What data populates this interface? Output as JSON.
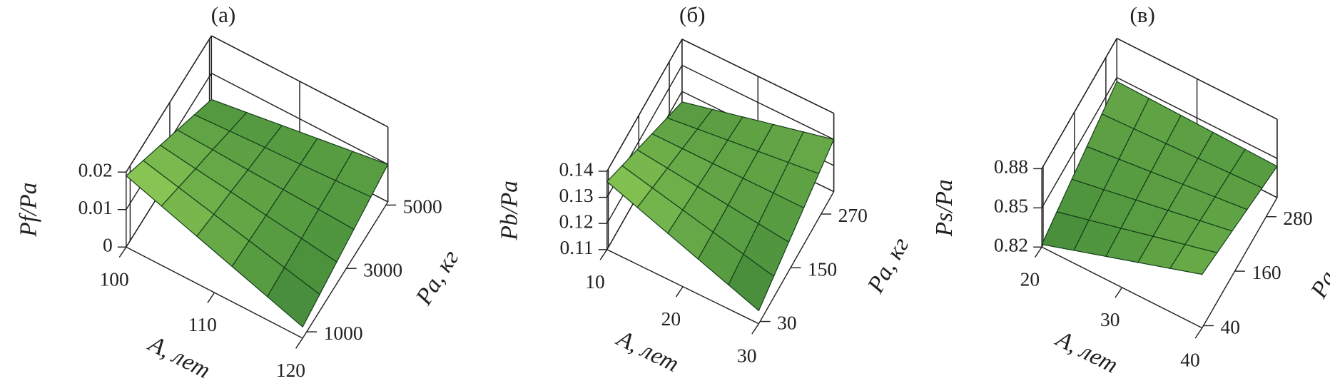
{
  "chart_data": [
    {
      "type": "surface",
      "title": "(а)",
      "xlabel": "A, лет",
      "ylabel": "Pa, кг",
      "zlabel": "Pf/Pa",
      "xlim": [
        100,
        120
      ],
      "ylim": [
        800,
        5100
      ],
      "zlim": [
        0,
        0.02
      ],
      "xticks": [
        100,
        110,
        120
      ],
      "yticks": [
        1000,
        3000,
        5000
      ],
      "zticks": [
        0,
        0.01,
        0.02
      ],
      "x": [
        100,
        104,
        108,
        112,
        116,
        120
      ],
      "y": [
        800,
        1660,
        2520,
        3380,
        4240,
        5100
      ],
      "z": [
        [
          0.019,
          0.0158,
          0.0126,
          0.0094,
          0.0062,
          0.003
        ],
        [
          0.0158,
          0.0135,
          0.0112,
          0.009,
          0.0067,
          0.0044
        ],
        [
          0.0126,
          0.0112,
          0.0099,
          0.0085,
          0.0072,
          0.0058
        ],
        [
          0.0094,
          0.009,
          0.0085,
          0.0081,
          0.0076,
          0.0072
        ],
        [
          0.0062,
          0.0067,
          0.0072,
          0.0077,
          0.0081,
          0.0086
        ],
        [
          0.003,
          0.0044,
          0.0058,
          0.0072,
          0.0086,
          0.01
        ]
      ],
      "colormap": [
        "#1d6a2c",
        "#9ad45a"
      ]
    },
    {
      "type": "surface",
      "title": "(б)",
      "xlabel": "A, лет",
      "ylabel": "Pa, кг",
      "zlabel": "Pb/Pa",
      "xlim": [
        10,
        30
      ],
      "ylim": [
        25,
        320
      ],
      "zlim": [
        0.11,
        0.14
      ],
      "xticks": [
        10,
        20,
        30
      ],
      "yticks": [
        30,
        150,
        270
      ],
      "zticks": [
        0.11,
        0.12,
        0.13,
        0.14
      ],
      "x": [
        10,
        14,
        18,
        22,
        26,
        30
      ],
      "y": [
        25,
        84,
        143,
        202,
        261,
        320
      ],
      "z": [
        [
          0.136,
          0.132,
          0.128,
          0.124,
          0.12,
          0.116
        ],
        [
          0.1318,
          0.1292,
          0.1266,
          0.124,
          0.1214,
          0.1188
        ],
        [
          0.1276,
          0.1264,
          0.1252,
          0.124,
          0.1228,
          0.1216
        ],
        [
          0.1234,
          0.1236,
          0.1238,
          0.124,
          0.1242,
          0.1244
        ],
        [
          0.1192,
          0.1208,
          0.1224,
          0.124,
          0.1256,
          0.1272
        ],
        [
          0.115,
          0.118,
          0.121,
          0.124,
          0.127,
          0.13
        ]
      ],
      "colormap": [
        "#1d6a2c",
        "#9ad45a"
      ]
    },
    {
      "type": "surface",
      "title": "(в)",
      "xlabel": "A, лет",
      "ylabel": "Pa, кг",
      "zlabel": "Ps/Pa",
      "xlim": [
        20,
        40
      ],
      "ylim": [
        35,
        322
      ],
      "zlim": [
        0.82,
        0.88
      ],
      "xticks": [
        20,
        30,
        40
      ],
      "yticks": [
        40,
        160,
        280
      ],
      "zticks": [
        0.82,
        0.85,
        0.88
      ],
      "x": [
        20,
        24,
        28,
        32,
        36,
        40
      ],
      "y": [
        35,
        92.4,
        149.8,
        207.2,
        264.6,
        322
      ],
      "z": [
        [
          0.822,
          0.827,
          0.832,
          0.837,
          0.842,
          0.847
        ],
        [
          0.8298,
          0.8331,
          0.8364,
          0.8398,
          0.8431,
          0.8464
        ],
        [
          0.8376,
          0.8392,
          0.8409,
          0.8425,
          0.8442,
          0.8458
        ],
        [
          0.8454,
          0.8454,
          0.8453,
          0.8453,
          0.8452,
          0.8452
        ],
        [
          0.8532,
          0.8515,
          0.8498,
          0.848,
          0.8463,
          0.8446
        ],
        [
          0.861,
          0.8576,
          0.8542,
          0.8508,
          0.8474,
          0.844
        ]
      ],
      "colormap": [
        "#1d6a2c",
        "#9ad45a"
      ]
    }
  ]
}
